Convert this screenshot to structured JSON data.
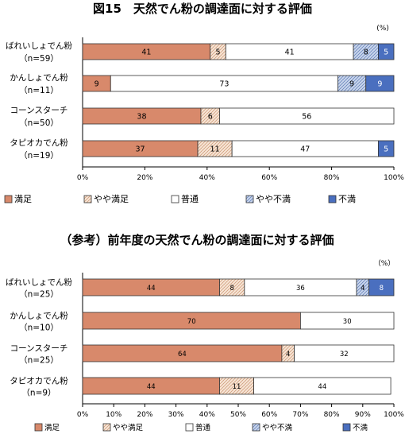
{
  "chart_data": [
    {
      "type": "bar",
      "stacked": true,
      "orientation": "horizontal",
      "title": "図15　天然でん粉の調達面に対する評価",
      "unit_label": "(%)",
      "categories": [
        "ばれいしょでん粉",
        "かんしょでん粉",
        "コーンスターチ",
        "タピオカでん粉"
      ],
      "category_counts": [
        "（n=59）",
        "（n=11）",
        "（n=50）",
        "（n=19）"
      ],
      "series": [
        {
          "name": "満足",
          "color": "#d8896b",
          "pattern": "solid",
          "values": [
            41,
            9,
            38,
            37
          ]
        },
        {
          "name": "やや満足",
          "color": "#f7e5d6",
          "pattern": "hatch",
          "values": [
            5,
            0,
            6,
            11
          ]
        },
        {
          "name": "普通",
          "color": "#ffffff",
          "pattern": "solid",
          "values": [
            41,
            73,
            56,
            47
          ]
        },
        {
          "name": "やや不満",
          "color": "#c9d6ec",
          "pattern": "hatch",
          "values": [
            8,
            9,
            0,
            0
          ]
        },
        {
          "name": "不満",
          "color": "#4a6fbf",
          "pattern": "solid",
          "values": [
            5,
            9,
            0,
            5
          ]
        }
      ],
      "xlim": [
        0,
        100
      ],
      "xticks": [
        "0%",
        "20%",
        "40%",
        "60%",
        "80%",
        "100%"
      ],
      "legend_position": "bottom"
    },
    {
      "type": "bar",
      "stacked": true,
      "orientation": "horizontal",
      "title": "（参考）前年度の天然でん粉の調達面に対する評価",
      "unit_label": "（%）",
      "categories": [
        "ばれいしょでん粉",
        "かんしょでん粉",
        "コーンスターチ",
        "タピオカでん粉"
      ],
      "category_counts": [
        "（n=25）",
        "（n=10）",
        "（n=25）",
        "（n=9）"
      ],
      "series": [
        {
          "name": "満足",
          "color": "#d8896b",
          "pattern": "solid",
          "values": [
            44,
            70,
            64,
            44
          ]
        },
        {
          "name": "やや満足",
          "color": "#f7e5d6",
          "pattern": "hatch",
          "values": [
            8,
            0,
            4,
            11
          ]
        },
        {
          "name": "普通",
          "color": "#ffffff",
          "pattern": "solid",
          "values": [
            36,
            30,
            32,
            44
          ]
        },
        {
          "name": "やや不満",
          "color": "#c9d6ec",
          "pattern": "hatch",
          "values": [
            4,
            0,
            0,
            0
          ]
        },
        {
          "name": "不満",
          "color": "#4a6fbf",
          "pattern": "solid",
          "values": [
            8,
            0,
            0,
            0
          ]
        }
      ],
      "xlim": [
        0,
        100
      ],
      "xticks": [
        "0%",
        "10%",
        "20%",
        "30%",
        "40%",
        "50%",
        "60%",
        "70%",
        "80%",
        "90%",
        "100%"
      ],
      "legend_position": "bottom"
    }
  ]
}
